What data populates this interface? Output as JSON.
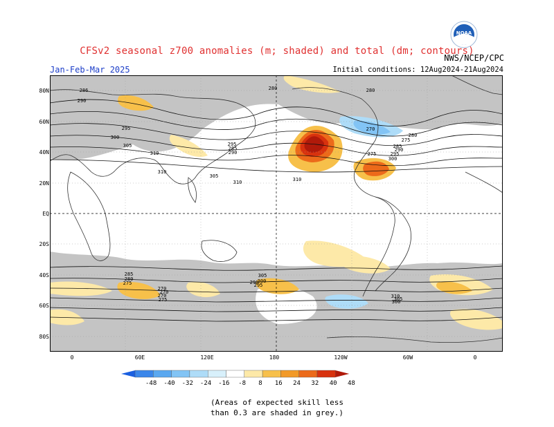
{
  "header": {
    "title": "CFSv2 seasonal z700 anomalies (m; shaded) and total (dm; contours)",
    "agency": "NWS/NCEP/CPC",
    "period": "Jan-Feb-Mar 2025",
    "initial_conditions": "Initial conditions: 12Aug2024-21Aug2024",
    "logo_text": "NOAA"
  },
  "axes": {
    "lat_labels": [
      "80N",
      "60N",
      "40N",
      "20N",
      "EQ",
      "20S",
      "40S",
      "60S",
      "80S"
    ],
    "lon_labels": [
      "0",
      "60E",
      "120E",
      "180",
      "120W",
      "60W",
      "0"
    ]
  },
  "contour_labels": [
    "280",
    "286",
    "290",
    "295",
    "300",
    "305",
    "310",
    "310",
    "310",
    "295",
    "290",
    "285",
    "280",
    "275",
    "270",
    "275",
    "280",
    "285",
    "290",
    "295",
    "300",
    "305",
    "310",
    "305",
    "300",
    "295",
    "290",
    "285",
    "280",
    "275",
    "270",
    "270",
    "270",
    "275",
    "310",
    "305",
    "300"
  ],
  "colorbar": {
    "tick_labels": [
      "-48",
      "-40",
      "-32",
      "-24",
      "-16",
      "-8",
      "8",
      "16",
      "24",
      "32",
      "40",
      "48"
    ],
    "colors": [
      "#1a5fe0",
      "#3a86ea",
      "#5aa8f0",
      "#82c4f5",
      "#aedcf8",
      "#d8f0fb",
      "#ffffff",
      "#fde9a8",
      "#f7c04a",
      "#f29a28",
      "#ec6a1a",
      "#d8320e",
      "#b01a0a"
    ]
  },
  "note": {
    "line1": "(Areas of expected skill less",
    "line2": "than 0.3 are shaded in grey.)"
  }
}
